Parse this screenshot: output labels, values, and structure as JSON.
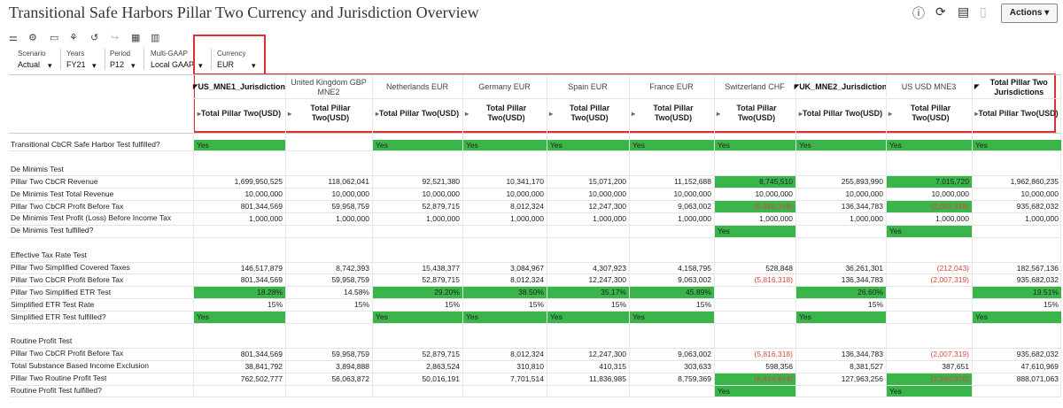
{
  "header": {
    "title": "Transitional Safe Harbors Pillar Two Currency and Jurisdiction Overview",
    "actions": "Actions"
  },
  "pov": [
    {
      "label": "Scenario",
      "value": "Actual"
    },
    {
      "label": "Years",
      "value": "FY21"
    },
    {
      "label": "Period",
      "value": "P12"
    },
    {
      "label": "Multi-GAAP",
      "value": "Local GAAP"
    },
    {
      "label": "Currency",
      "value": "EUR"
    }
  ],
  "highlight_color": "#3ab54a",
  "negative_color": "#d9473a",
  "table": {
    "columns": [
      {
        "header": "US_MNE1_Jurisdiction",
        "sub": "Total Pillar Two(USD)",
        "bold": true
      },
      {
        "header": "United Kingdom GBP MNE2",
        "sub": "Total Pillar Two(USD)"
      },
      {
        "header": "Netherlands EUR",
        "sub": "Total Pillar Two(USD)"
      },
      {
        "header": "Germany EUR",
        "sub": "Total Pillar Two(USD)"
      },
      {
        "header": "Spain EUR",
        "sub": "Total Pillar Two(USD)"
      },
      {
        "header": "France EUR",
        "sub": "Total Pillar Two(USD)"
      },
      {
        "header": "Switzerland CHF",
        "sub": "Total Pillar Two(USD)"
      },
      {
        "header": "UK_MNE2_Jurisdiction",
        "sub": "Total Pillar Two(USD)",
        "bold": true
      },
      {
        "header": "US USD MNE3",
        "sub": "Total Pillar Two(USD)"
      },
      {
        "header": "Total Pillar Two Jurisdictions",
        "sub": "Total Pillar Two(USD)",
        "bold": true
      }
    ],
    "sections": [
      {
        "rows": [
          {
            "label": "Transitional CbCR Safe Harbor Test fulfilled?",
            "cells": [
              {
                "text": "Yes",
                "highlight": true
              },
              null,
              {
                "text": "Yes",
                "highlight": true
              },
              {
                "text": "Yes",
                "highlight": true
              },
              {
                "text": "Yes",
                "highlight": true
              },
              {
                "text": "Yes",
                "highlight": true
              },
              {
                "text": "Yes",
                "highlight": true
              },
              {
                "text": "Yes",
                "highlight": true
              },
              {
                "text": "Yes",
                "highlight": true
              },
              {
                "text": "Yes",
                "highlight": true
              }
            ]
          }
        ]
      },
      {
        "title": "De Minimis Test",
        "rows": [
          {
            "label": "Pillar Two CbCR Revenue",
            "cells": [
              "1,699,950,525",
              "118,062,041",
              "92,521,380",
              "10,341,170",
              "15,071,200",
              "11,152,688",
              {
                "text": "8,745,510",
                "highlight": true
              },
              "255,893,990",
              {
                "text": "7,015,720",
                "highlight": true
              },
              "1,962,860,235"
            ]
          },
          {
            "label": "De Minimis Test Total Revenue",
            "cells": [
              "10,000,000",
              "10,000,000",
              "10,000,000",
              "10,000,000",
              "10,000,000",
              "10,000,000",
              "10,000,000",
              "10,000,000",
              "10,000,000",
              "10,000,000"
            ]
          },
          {
            "label": "Pillar Two CbCR Profit Before Tax",
            "cells": [
              "801,344,569",
              "59,958,759",
              "52,879,715",
              "8,012,324",
              "12,247,300",
              "9,063,002",
              {
                "text": "(5,816,318)",
                "highlight": true
              },
              "136,344,783",
              {
                "text": "(2,007,319)",
                "highlight": true
              },
              "935,682,032"
            ]
          },
          {
            "label": "De Minimis Test Profit (Loss) Before Income Tax",
            "cells": [
              "1,000,000",
              "1,000,000",
              "1,000,000",
              "1,000,000",
              "1,000,000",
              "1,000,000",
              "1,000,000",
              "1,000,000",
              "1,000,000",
              "1,000,000"
            ]
          },
          {
            "label": "De Minimis Test fulfilled?",
            "cells": [
              null,
              null,
              null,
              null,
              null,
              null,
              {
                "text": "Yes",
                "highlight": true
              },
              null,
              {
                "text": "Yes",
                "highlight": true
              },
              null
            ]
          }
        ]
      },
      {
        "title": "Effective Tax Rate Test",
        "rows": [
          {
            "label": "Pillar Two Simplified Covered Taxes",
            "cells": [
              "146,517,879",
              "8,742,393",
              "15,438,377",
              "3,084,967",
              "4,307,923",
              "4,158,795",
              "528,848",
              "36,261,301",
              "(212,043)",
              "182,567,136"
            ]
          },
          {
            "label": "Pillar Two CbCR Profit Before Tax",
            "cells": [
              "801,344,569",
              "59,958,759",
              "52,879,715",
              "8,012,324",
              "12,247,300",
              "9,063,002",
              "(5,816,318)",
              "136,344,783",
              "(2,007,319)",
              "935,682,032"
            ]
          },
          {
            "label": "Pillar Two Simplified ETR Test",
            "cells": [
              {
                "text": "18.28%",
                "highlight": true
              },
              "14.58%",
              {
                "text": "29.20%",
                "highlight": true
              },
              {
                "text": "38.50%",
                "highlight": true
              },
              {
                "text": "35.17%",
                "highlight": true
              },
              {
                "text": "45.89%",
                "highlight": true
              },
              null,
              {
                "text": "26.60%",
                "highlight": true
              },
              null,
              {
                "text": "19.51%",
                "highlight": true
              }
            ]
          },
          {
            "label": "Simplified ETR Test Rate",
            "cells": [
              "15%",
              "15%",
              "15%",
              "15%",
              "15%",
              "15%",
              null,
              "15%",
              null,
              "15%"
            ]
          },
          {
            "label": "Simplified ETR Test fulfilled?",
            "cells": [
              {
                "text": "Yes",
                "highlight": true
              },
              null,
              {
                "text": "Yes",
                "highlight": true
              },
              {
                "text": "Yes",
                "highlight": true
              },
              {
                "text": "Yes",
                "highlight": true
              },
              {
                "text": "Yes",
                "highlight": true
              },
              null,
              {
                "text": "Yes",
                "highlight": true
              },
              null,
              {
                "text": "Yes",
                "highlight": true
              }
            ]
          }
        ]
      },
      {
        "title": "Routine Profit Test",
        "rows": [
          {
            "label": "Pillar Two CbCR Profit Before Tax",
            "cells": [
              "801,344,569",
              "59,958,759",
              "52,879,715",
              "8,012,324",
              "12,247,300",
              "9,063,002",
              "(5,816,318)",
              "136,344,783",
              "(2,007,319)",
              "935,682,032"
            ]
          },
          {
            "label": "Total Substance Based Income Exclusion",
            "cells": [
              "38,841,792",
              "3,894,888",
              "2,863,524",
              "310,810",
              "410,315",
              "303,633",
              "598,356",
              "8,381,527",
              "387,651",
              "47,610,969"
            ]
          },
          {
            "label": "Pillar Two Routine Profit Test",
            "cells": [
              "762,502,777",
              "56,063,872",
              "50,016,191",
              "7,701,514",
              "11,836,985",
              "8,759,369",
              {
                "text": "(6,414,674)",
                "highlight": true
              },
              "127,963,256",
              {
                "text": "(2,394,970)",
                "highlight": true
              },
              "888,071,063"
            ]
          },
          {
            "label": "Routine Profit Test fulfilled?",
            "cells": [
              null,
              null,
              null,
              null,
              null,
              null,
              {
                "text": "Yes",
                "highlight": true
              },
              null,
              {
                "text": "Yes",
                "highlight": true
              },
              null
            ]
          }
        ]
      }
    ]
  }
}
